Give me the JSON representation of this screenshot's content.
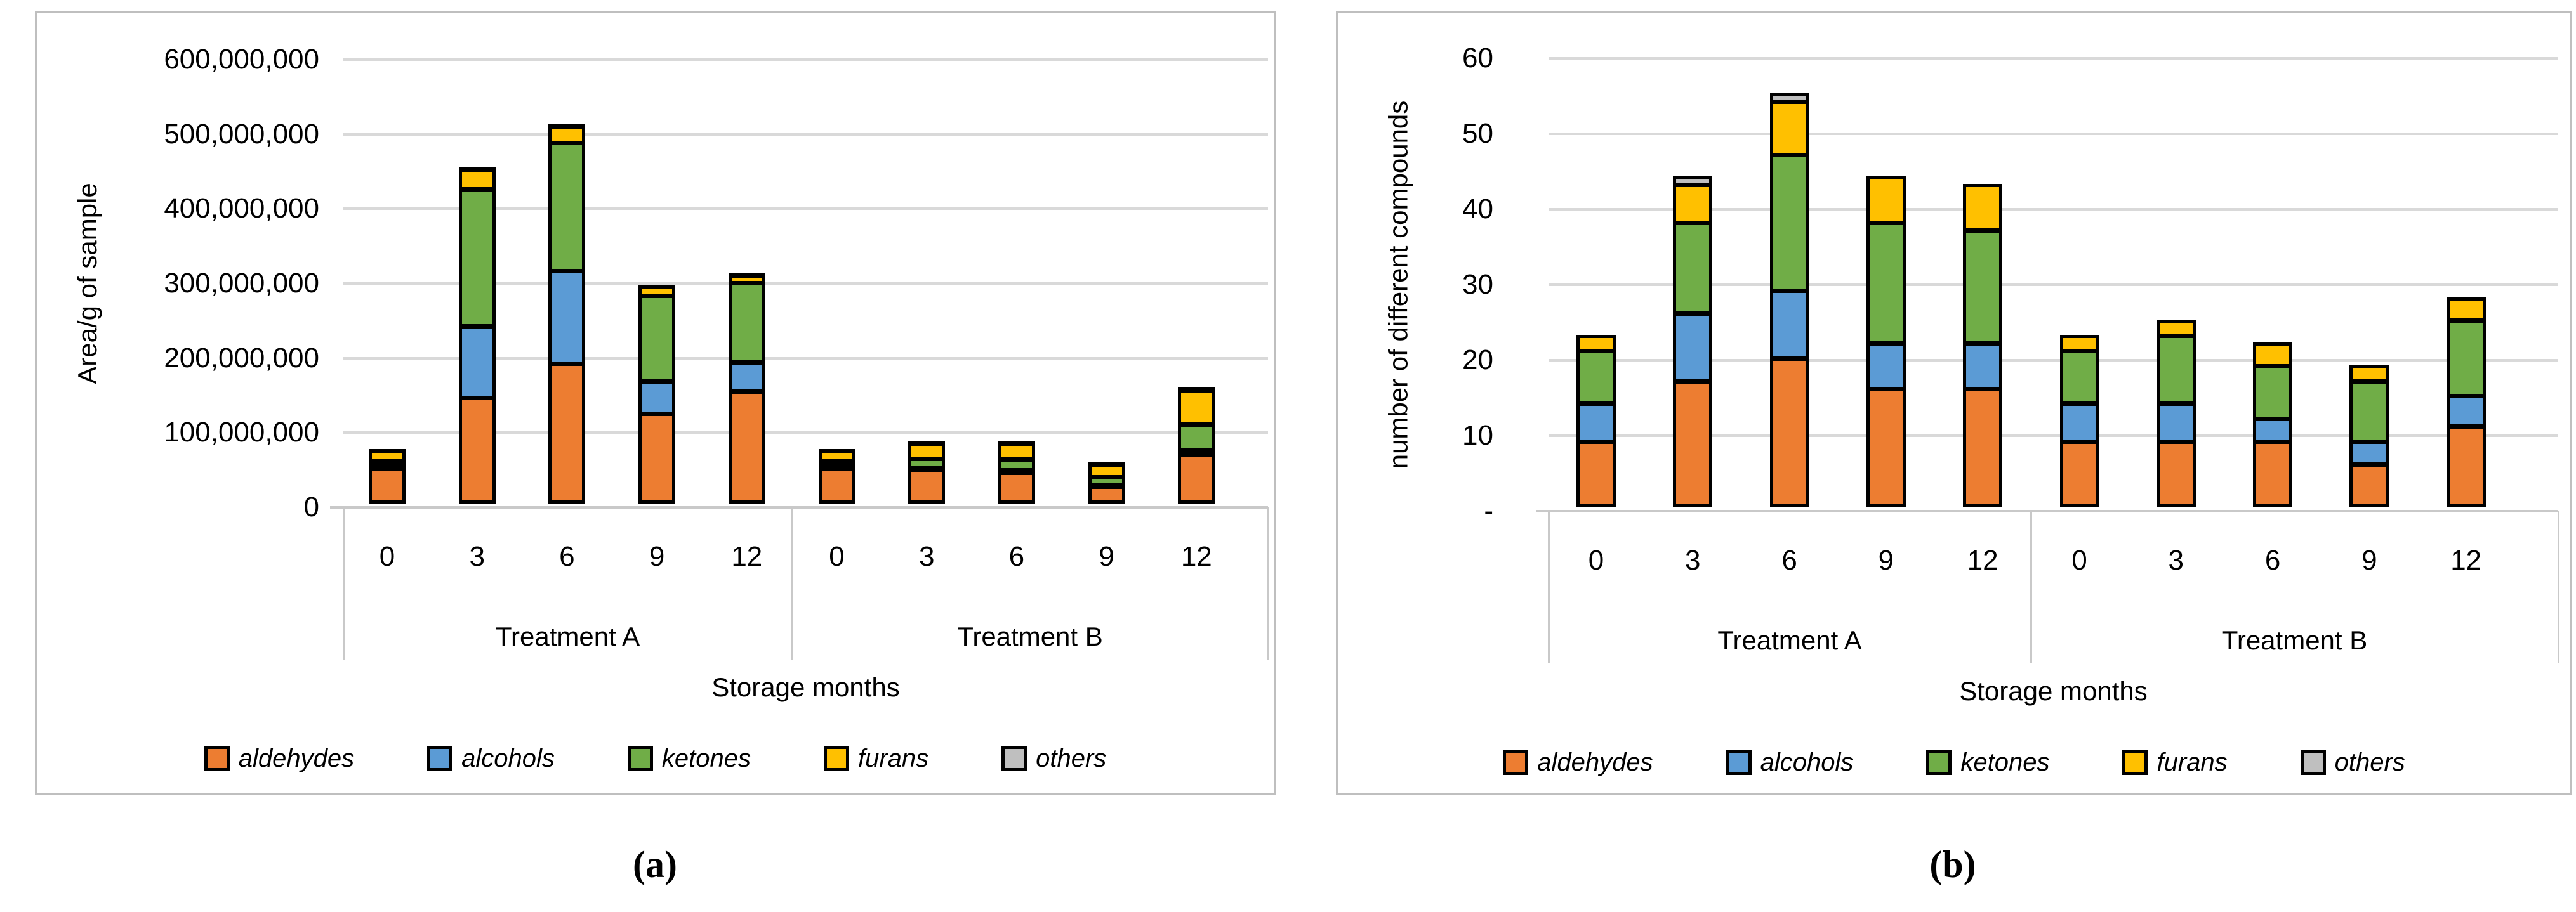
{
  "figure": {
    "background_color": "#ffffff",
    "panel_border_color": "#bfbfbf",
    "gridline_color": "#d9d9d9",
    "bar_border_color": "#000000"
  },
  "legend": {
    "items": [
      {
        "label": "aldehydes",
        "color": "#ED7D31"
      },
      {
        "label": "alcohols",
        "color": "#5B9BD5"
      },
      {
        "label": "ketones",
        "color": "#70AD47"
      },
      {
        "label": "furans",
        "color": "#FFC000"
      },
      {
        "label": "others",
        "color": "#BFBFBF"
      }
    ]
  },
  "chart_data": [
    {
      "id": "a",
      "panel_label": "(a)",
      "type": "bar",
      "stacked": true,
      "title": "",
      "ylabel": "Area/g of sample",
      "xlabel": "Storage months",
      "ylim": [
        0,
        600000000
      ],
      "grid": true,
      "legend_position": "bottom",
      "ytick_labels": [
        "600,000,000",
        "500,000,000",
        "400,000,000",
        "300,000,000",
        "200,000,000",
        "100,000,000",
        "0"
      ],
      "groups": [
        {
          "label": "Treatment A",
          "categories": [
            "0",
            "3",
            "6",
            "9",
            "12"
          ]
        },
        {
          "label": "Treatment B",
          "categories": [
            "0",
            "3",
            "6",
            "9",
            "12"
          ]
        }
      ],
      "series": [
        {
          "name": "aldehydes",
          "color": "#ED7D31",
          "values": [
            40000000,
            134000000,
            180000000,
            113000000,
            143000000,
            40000000,
            38000000,
            34000000,
            15000000,
            59000000
          ]
        },
        {
          "name": "alcohols",
          "color": "#5B9BD5",
          "values": [
            3000000,
            96000000,
            124000000,
            43000000,
            39000000,
            3000000,
            3000000,
            3000000,
            3000000,
            6000000
          ]
        },
        {
          "name": "ketones",
          "color": "#70AD47",
          "values": [
            6000000,
            184000000,
            172000000,
            115000000,
            106000000,
            6000000,
            12000000,
            15000000,
            10000000,
            34000000
          ]
        },
        {
          "name": "furans",
          "color": "#FFC000",
          "values": [
            14000000,
            26000000,
            22000000,
            12000000,
            10000000,
            14000000,
            20000000,
            20000000,
            16000000,
            45000000
          ]
        },
        {
          "name": "others",
          "color": "#BFBFBF",
          "values": [
            2000000,
            2000000,
            2000000,
            2000000,
            2000000,
            2000000,
            3000000,
            3000000,
            3000000,
            4000000
          ]
        }
      ],
      "stack_totals": [
        65000000,
        442000000,
        500000000,
        285000000,
        300000000,
        65000000,
        76000000,
        75000000,
        47000000,
        148000000
      ]
    },
    {
      "id": "b",
      "panel_label": "(b)",
      "type": "bar",
      "stacked": true,
      "title": "",
      "ylabel": "number of different compounds",
      "xlabel": "Storage months",
      "ylim": [
        0,
        60
      ],
      "grid": true,
      "legend_position": "bottom",
      "ytick_labels": [
        "60",
        "50",
        "40",
        "30",
        "20",
        "10",
        "-"
      ],
      "groups": [
        {
          "label": "Treatment A",
          "categories": [
            "0",
            "3",
            "6",
            "9",
            "12"
          ]
        },
        {
          "label": "Treatment B",
          "categories": [
            "0",
            "3",
            "6",
            "9",
            "12"
          ]
        }
      ],
      "series": [
        {
          "name": "aldehydes",
          "color": "#ED7D31",
          "values": [
            8,
            16,
            19,
            15,
            15,
            8,
            8,
            8,
            5,
            10
          ]
        },
        {
          "name": "alcohols",
          "color": "#5B9BD5",
          "values": [
            5,
            9,
            9,
            6,
            6,
            5,
            5,
            3,
            3,
            4
          ]
        },
        {
          "name": "ketones",
          "color": "#70AD47",
          "values": [
            7,
            12,
            18,
            16,
            15,
            7,
            9,
            7,
            8,
            10
          ]
        },
        {
          "name": "furans",
          "color": "#FFC000",
          "values": [
            2,
            5,
            7,
            6,
            6,
            2,
            2,
            3,
            2,
            3
          ]
        },
        {
          "name": "others",
          "color": "#BFBFBF",
          "values": [
            0,
            1,
            1,
            0,
            0,
            0,
            0,
            0,
            0,
            0
          ]
        }
      ],
      "stack_totals": [
        22,
        43,
        54,
        43,
        42,
        22,
        24,
        21,
        18,
        27
      ]
    }
  ]
}
